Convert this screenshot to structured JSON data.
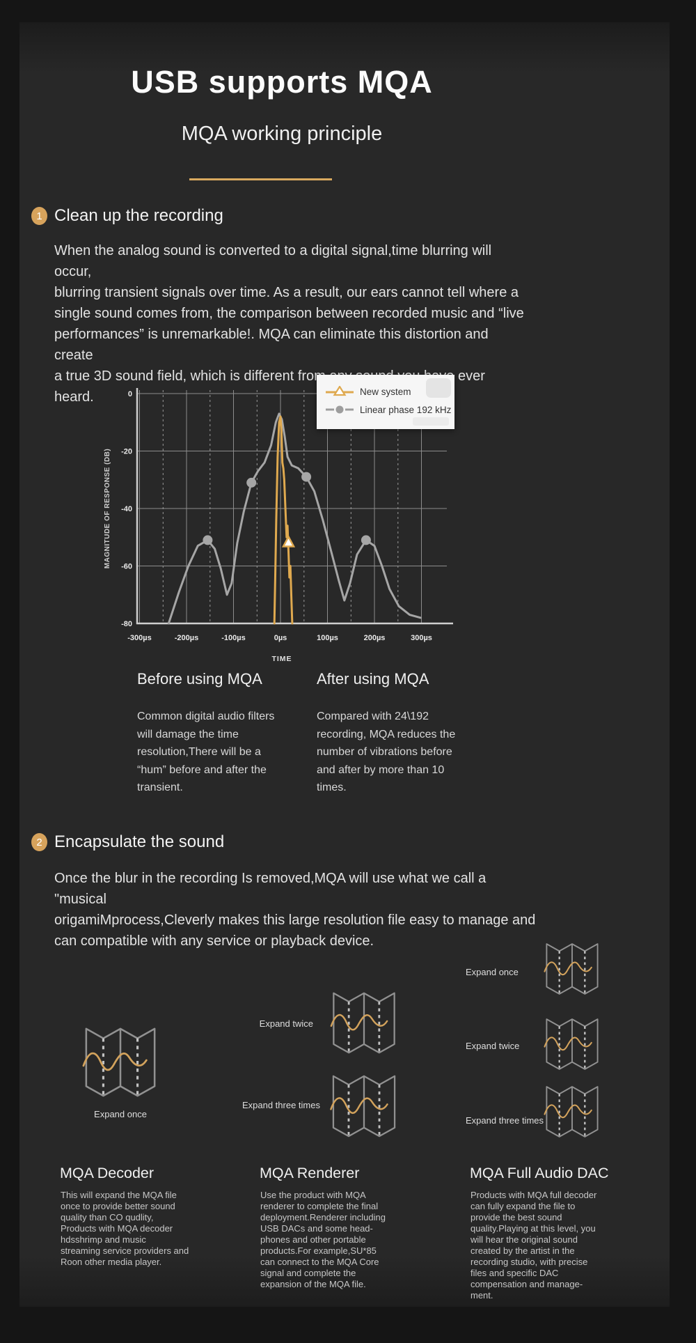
{
  "page": {
    "title": "USB supports MQA",
    "subtitle": "MQA working principle"
  },
  "colors": {
    "accent_gold": "#d7a35c",
    "panel_background": "#282828",
    "outer_background": "#151515",
    "new_system_line": "#dfa94f",
    "linear_phase_line": "#a6a6a6",
    "legend_background": "#f6f6f6"
  },
  "icons": {
    "origami": "folded-paper-with-gold-waveform",
    "step_badge": "gold-numbered-circle",
    "legend_triangle": "gold-line-with-triangle-marker",
    "legend_circle": "gray-line-with-circle-marker"
  },
  "section1": {
    "number": "1",
    "heading": "Clean up the recording",
    "body_lines": [
      "When the analog sound is converted to a digital signal,time blurring will occur,",
      "blurring transient signals over time. As a result, our ears cannot tell where a",
      "single sound comes from, the comparison between recorded music and “live",
      "performances” is unremarkable!. MQA can eliminate this distortion and create",
      "a true 3D sound field, which is different from any sound you have ever heard."
    ],
    "before": {
      "heading": "Before using MQA",
      "body_lines": [
        "Common digital audio filters",
        "will damage the time",
        "resolution,There will be a",
        " “hum”  before and after the",
        "transient."
      ]
    },
    "after": {
      "heading": "After using MQA",
      "body_lines": [
        "Compared with 24\\192",
        "recording, MQA reduces the",
        "number of vibrations before",
        "and after by more than 10",
        "times."
      ]
    }
  },
  "chart_data": {
    "type": "line",
    "title": "",
    "xlabel": "TIME",
    "ylabel": "MAGNITUDE OF RESPONSE (DB)",
    "x_ticks": [
      "-300µs",
      "-200µs",
      "-100µs",
      "0µs",
      "100µs",
      "200µs",
      "300µs"
    ],
    "y_ticks": [
      0,
      -20,
      -40,
      -60,
      -80
    ],
    "xlim_us": [
      -300,
      300
    ],
    "ylim_db": [
      -80,
      0
    ],
    "grid": true,
    "legend_position": "top-right",
    "series": [
      {
        "name": "New system",
        "color": "#dfa94f",
        "marker": "triangle",
        "points_us_db": [
          [
            -13,
            -80
          ],
          [
            -11,
            -62
          ],
          [
            -9,
            -44
          ],
          [
            -6,
            -22
          ],
          [
            -3,
            -10
          ],
          [
            0,
            -8
          ],
          [
            2,
            -13
          ],
          [
            4,
            -24
          ],
          [
            6,
            -26
          ],
          [
            8,
            -30
          ],
          [
            11,
            -42
          ],
          [
            13,
            -50
          ],
          [
            15,
            -46
          ],
          [
            17,
            -55
          ],
          [
            19,
            -64
          ],
          [
            21,
            -60
          ],
          [
            23,
            -70
          ],
          [
            25,
            -80
          ]
        ],
        "marker_points_us_db": [
          [
            17,
            -52
          ]
        ]
      },
      {
        "name": "Linear phase 192 kHz",
        "color": "#a6a6a6",
        "marker": "circle",
        "points_us_db": [
          [
            -238,
            -80
          ],
          [
            -216,
            -69
          ],
          [
            -196,
            -60
          ],
          [
            -176,
            -53
          ],
          [
            -155,
            -51
          ],
          [
            -140,
            -54
          ],
          [
            -127,
            -61
          ],
          [
            -114,
            -70
          ],
          [
            -104,
            -66
          ],
          [
            -92,
            -52
          ],
          [
            -78,
            -41
          ],
          [
            -62,
            -31
          ],
          [
            -48,
            -27
          ],
          [
            -34,
            -24
          ],
          [
            -20,
            -18
          ],
          [
            -10,
            -10
          ],
          [
            -3,
            -7
          ],
          [
            3,
            -9
          ],
          [
            9,
            -15
          ],
          [
            15,
            -22
          ],
          [
            24,
            -25
          ],
          [
            38,
            -26
          ],
          [
            55,
            -29
          ],
          [
            72,
            -34
          ],
          [
            90,
            -44
          ],
          [
            108,
            -55
          ],
          [
            124,
            -65
          ],
          [
            136,
            -72
          ],
          [
            148,
            -66
          ],
          [
            163,
            -56
          ],
          [
            182,
            -51
          ],
          [
            200,
            -53
          ],
          [
            216,
            -60
          ],
          [
            232,
            -68
          ],
          [
            252,
            -74
          ],
          [
            275,
            -77
          ],
          [
            298,
            -78
          ]
        ],
        "marker_points_us_db": [
          [
            -155,
            -51
          ],
          [
            -62,
            -31
          ],
          [
            55,
            -29
          ],
          [
            182,
            -51
          ]
        ]
      }
    ]
  },
  "section2": {
    "number": "2",
    "heading": "Encapsulate the sound",
    "body_lines": [
      "Once the blur in the recording Is removed,MQA will use what we call a \"musical",
      "origamiMprocess,Cleverly makes this large resolution file easy to manage and",
      "can compatible with any service or playback device."
    ]
  },
  "columns": [
    {
      "heading": "MQA Decoder",
      "expands": [
        "Expand once"
      ],
      "body_lines": [
        "This will expand the MQA file",
        "once to provide better sound",
        "quality than CO qudlity,",
        "Products with MQA decoder",
        "hdsshrimp and music",
        "streaming service providers and",
        "Roon other media player."
      ]
    },
    {
      "heading": "MQA Renderer",
      "expands": [
        "Expand twice",
        "Expand three times"
      ],
      "body_lines": [
        "Use the product with MQA",
        "renderer to complete the final",
        "deployment.Renderer including",
        "USB DACs and some head-",
        "phones and other portable",
        "products.For example,SU*85",
        "can connect to the MQA Core",
        "signal and complete the",
        "expansion of the MQA file."
      ]
    },
    {
      "heading": "MQA Full Audio DAC",
      "expands": [
        "Expand once",
        "Expand twice",
        "Expand three times"
      ],
      "body_lines": [
        "Products with MQA full decoder",
        "can fully expand the file to",
        "provide the best sound",
        "quality.Playing at this level, you",
        "will hear the original sound",
        "created by the artist in the",
        "recording studio, with precise",
        "files and specific DAC",
        "compensation and manage-",
        "ment."
      ]
    }
  ]
}
